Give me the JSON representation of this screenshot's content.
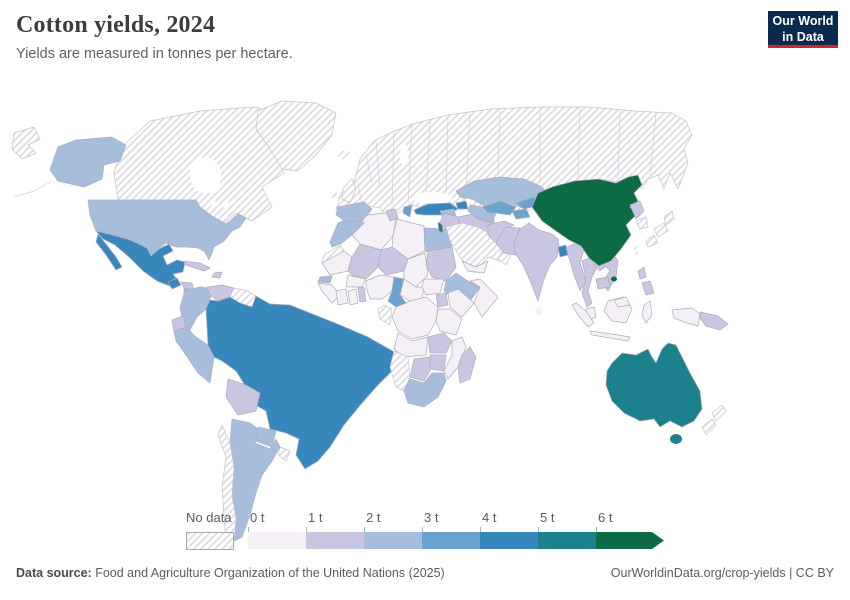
{
  "header": {
    "title": "Cotton yields, 2024",
    "subtitle": "Yields are measured in tonnes per hectare."
  },
  "logo": {
    "line1": "Our World",
    "line2": "in Data",
    "bg_color": "#0a2a4d",
    "underline_color": "#cf2722"
  },
  "legend": {
    "no_data_label": "No data",
    "ticks": [
      "0 t",
      "1 t",
      "2 t",
      "3 t",
      "4 t",
      "5 t",
      "6 t"
    ],
    "bin_colors": [
      "#f4f0f6",
      "#c9c6e1",
      "#a6bedb",
      "#6aa4ce",
      "#3787bd",
      "#1c808d",
      "#0c6b44"
    ]
  },
  "footer": {
    "source_label": "Data source:",
    "source_text": " Food and Agriculture Organization of the United Nations (2025)",
    "right_text": "OurWorldinData.org/crop-yields | CC BY"
  },
  "map": {
    "fills": {
      "alaska": 2,
      "usa": 2,
      "canada": "nodata",
      "greenland": "nodata",
      "iceland": "nodata",
      "chukotka-wrap": "nodata",
      "mexico": 4,
      "baja": 4,
      "guatemala": 4,
      "honduras": 1,
      "nicaragua": 2,
      "panama-costa-rica": 2,
      "cuba": 1,
      "hispaniola": 1,
      "colombia": 2,
      "venezuela": 1,
      "guyanas": "nodata",
      "ecuador": 1,
      "peru": 2,
      "brazil": 4,
      "bolivia": 1,
      "paraguay": 2,
      "argentina": 2,
      "chile": "nodata",
      "uruguay": "nodata",
      "morocco": 2,
      "western-sahara": "nodata",
      "algeria": 0,
      "tunisia": 1,
      "libya": 0,
      "egypt": 2,
      "mauritania": 0,
      "mali": 1,
      "niger": 1,
      "chad": 0,
      "sudan": 1,
      "ethiopia": 2,
      "somalia": 0,
      "senegal": 2,
      "guinea-west": 0,
      "cote-divoire": 0,
      "ghana": 0,
      "benin-togo": 1,
      "burkina-faso": 0,
      "nigeria": 0,
      "cameroon": 3,
      "central-african-republic": 0,
      "south-sudan": 0,
      "uganda": 1,
      "kenya": 0,
      "drc": 0,
      "gabon-congo": "nodata",
      "tanzania": 0,
      "angola": 0,
      "zambia": 1,
      "mozambique": 0,
      "zimbabwe": 1,
      "botswana": 1,
      "namibia": "nodata",
      "south-africa": 2,
      "madagascar": 1,
      "eurasia-hatch": "nodata",
      "uk": "nodata",
      "ireland": "nodata",
      "spain": 2,
      "greece": 3,
      "turkey": 4,
      "syria": 2,
      "israel": 5,
      "iraq": 1,
      "iran": 1,
      "arabia": "nodata",
      "yemen": 0,
      "oman": "nodata",
      "kazakhstan": 2,
      "uzbekistan": 3,
      "turkmenistan": 2,
      "kyrgyzstan": 3,
      "tajikistan": 3,
      "azerbaijan": 4,
      "afghanistan": 1,
      "pakistan": 1,
      "india": 1,
      "sri-lanka": 0,
      "bangladesh": 4,
      "myanmar": 1,
      "thailand": 1,
      "laos": 1,
      "vietnam": 1,
      "cambodia": 1,
      "malaysia": 0,
      "malaysia-borneo": 0,
      "indonesia-sumatra": 0,
      "indonesia-java": 0,
      "indonesia-borneo": 0,
      "indonesia-sulawesi": 0,
      "indonesia-papua": 0,
      "papua-new-guinea": 1,
      "philippines-north": 1,
      "philippines-south": 1,
      "china": 6,
      "hainan": 6,
      "taiwan": "nodata",
      "north-korea": 1,
      "south-korea": "nodata",
      "japan-north": "nodata",
      "japan-mid": "nodata",
      "japan-south": "nodata",
      "australia": 5,
      "tasmania": 5,
      "new-zealand-north": "nodata",
      "new-zealand-south": "nodata"
    }
  },
  "chart_data": {
    "type": "choropleth_map",
    "title": "Cotton yields, 2024",
    "subtitle": "Yields are measured in tonnes per hectare.",
    "unit": "tonnes per hectare",
    "year": 2024,
    "legend_bins": [
      {
        "label": "0–1 t",
        "color": "#f4f0f6"
      },
      {
        "label": "1–2 t",
        "color": "#c9c6e1"
      },
      {
        "label": "2–3 t",
        "color": "#a6bedb"
      },
      {
        "label": "3–4 t",
        "color": "#6aa4ce"
      },
      {
        "label": "4–5 t",
        "color": "#3787bd"
      },
      {
        "label": "5–6 t",
        "color": "#1c808d"
      },
      {
        "label": "6+ t",
        "color": "#0c6b44"
      }
    ],
    "values_estimated_range_t_per_ha": {
      "China": "6+",
      "Australia": "5-6",
      "Israel": "5-6",
      "Turkey": "4-5",
      "Mexico": "4-5",
      "Brazil": "4-5",
      "Guatemala": "4-5",
      "Bangladesh": "4-5",
      "Azerbaijan": "4-5",
      "Cameroon": "3-4",
      "Greece": "3-4",
      "Uzbekistan": "3-4",
      "Kyrgyzstan": "3-4",
      "Tajikistan": "3-4",
      "United States": "2-3",
      "Spain": "2-3",
      "Morocco": "2-3",
      "Egypt": "2-3",
      "Ethiopia": "2-3",
      "Senegal": "2-3",
      "South Africa": "2-3",
      "Colombia": "2-3",
      "Peru": "2-3",
      "Argentina": "2-3",
      "Paraguay": "2-3",
      "Nicaragua": "2-3",
      "Syria": "2-3",
      "Kazakhstan": "2-3",
      "Turkmenistan": "2-3",
      "India": "1-2",
      "Pakistan": "1-2",
      "Iran": "1-2",
      "Iraq": "1-2",
      "Afghanistan": "1-2",
      "Myanmar": "1-2",
      "Thailand": "1-2",
      "Laos": "1-2",
      "Vietnam": "1-2",
      "Cambodia": "1-2",
      "Philippines": "1-2",
      "Papua New Guinea": "1-2",
      "North Korea": "1-2",
      "Venezuela": "1-2",
      "Bolivia": "1-2",
      "Ecuador": "1-2",
      "Cuba": "1-2",
      "Honduras": "1-2",
      "Mali": "1-2",
      "Niger": "1-2",
      "Sudan": "1-2",
      "Tunisia": "1-2",
      "Benin": "1-2",
      "Togo": "1-2",
      "Uganda": "1-2",
      "Zambia": "1-2",
      "Zimbabwe": "1-2",
      "Botswana": "1-2",
      "Madagascar": "1-2",
      "Algeria": "0-1",
      "Libya": "0-1",
      "Mauritania": "0-1",
      "Chad": "0-1",
      "Somalia": "0-1",
      "Guinea": "0-1",
      "Cote d'Ivoire": "0-1",
      "Ghana": "0-1",
      "Burkina Faso": "0-1",
      "Nigeria": "0-1",
      "Central African Republic": "0-1",
      "South Sudan": "0-1",
      "Kenya": "0-1",
      "DR Congo": "0-1",
      "Tanzania": "0-1",
      "Angola": "0-1",
      "Mozambique": "0-1",
      "Yemen": "0-1",
      "Sri Lanka": "0-1",
      "Malaysia": "0-1",
      "Indonesia": "0-1"
    },
    "no_data": [
      "Canada",
      "Greenland",
      "Iceland",
      "Russia",
      "Europe (most)",
      "United Kingdom",
      "Ireland",
      "Mongolia",
      "Japan",
      "South Korea",
      "Taiwan",
      "Saudi Arabia",
      "Oman",
      "Chile",
      "Uruguay",
      "Guyana",
      "Suriname",
      "Namibia",
      "Western Sahara",
      "Gabon",
      "Congo",
      "New Zealand"
    ]
  }
}
